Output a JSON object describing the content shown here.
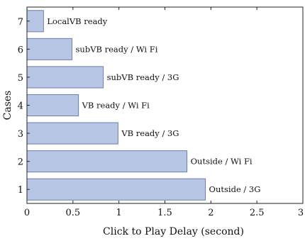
{
  "chart_data": {
    "type": "bar",
    "orientation": "horizontal",
    "categories": [
      "1",
      "2",
      "3",
      "4",
      "5",
      "6",
      "7"
    ],
    "values": [
      1.94,
      1.74,
      0.99,
      0.56,
      0.83,
      0.49,
      0.18
    ],
    "bar_labels": [
      "Outside / 3G",
      "Outside / Wi Fi",
      "VB ready / 3G",
      "VB ready / Wi Fi",
      "subVB ready / 3G",
      "subVB ready / Wi Fi",
      "LocalVB ready"
    ],
    "xlabel": "Click to Play Delay (second)",
    "ylabel": "Cases",
    "xlim": [
      0,
      3
    ],
    "xticks": [
      "0",
      "0.5",
      "1",
      "1.5",
      "2",
      "2.5",
      "3"
    ],
    "grid": false,
    "bar_color": "#b8c6e6",
    "bar_edge_color": "#6b7fa8"
  }
}
